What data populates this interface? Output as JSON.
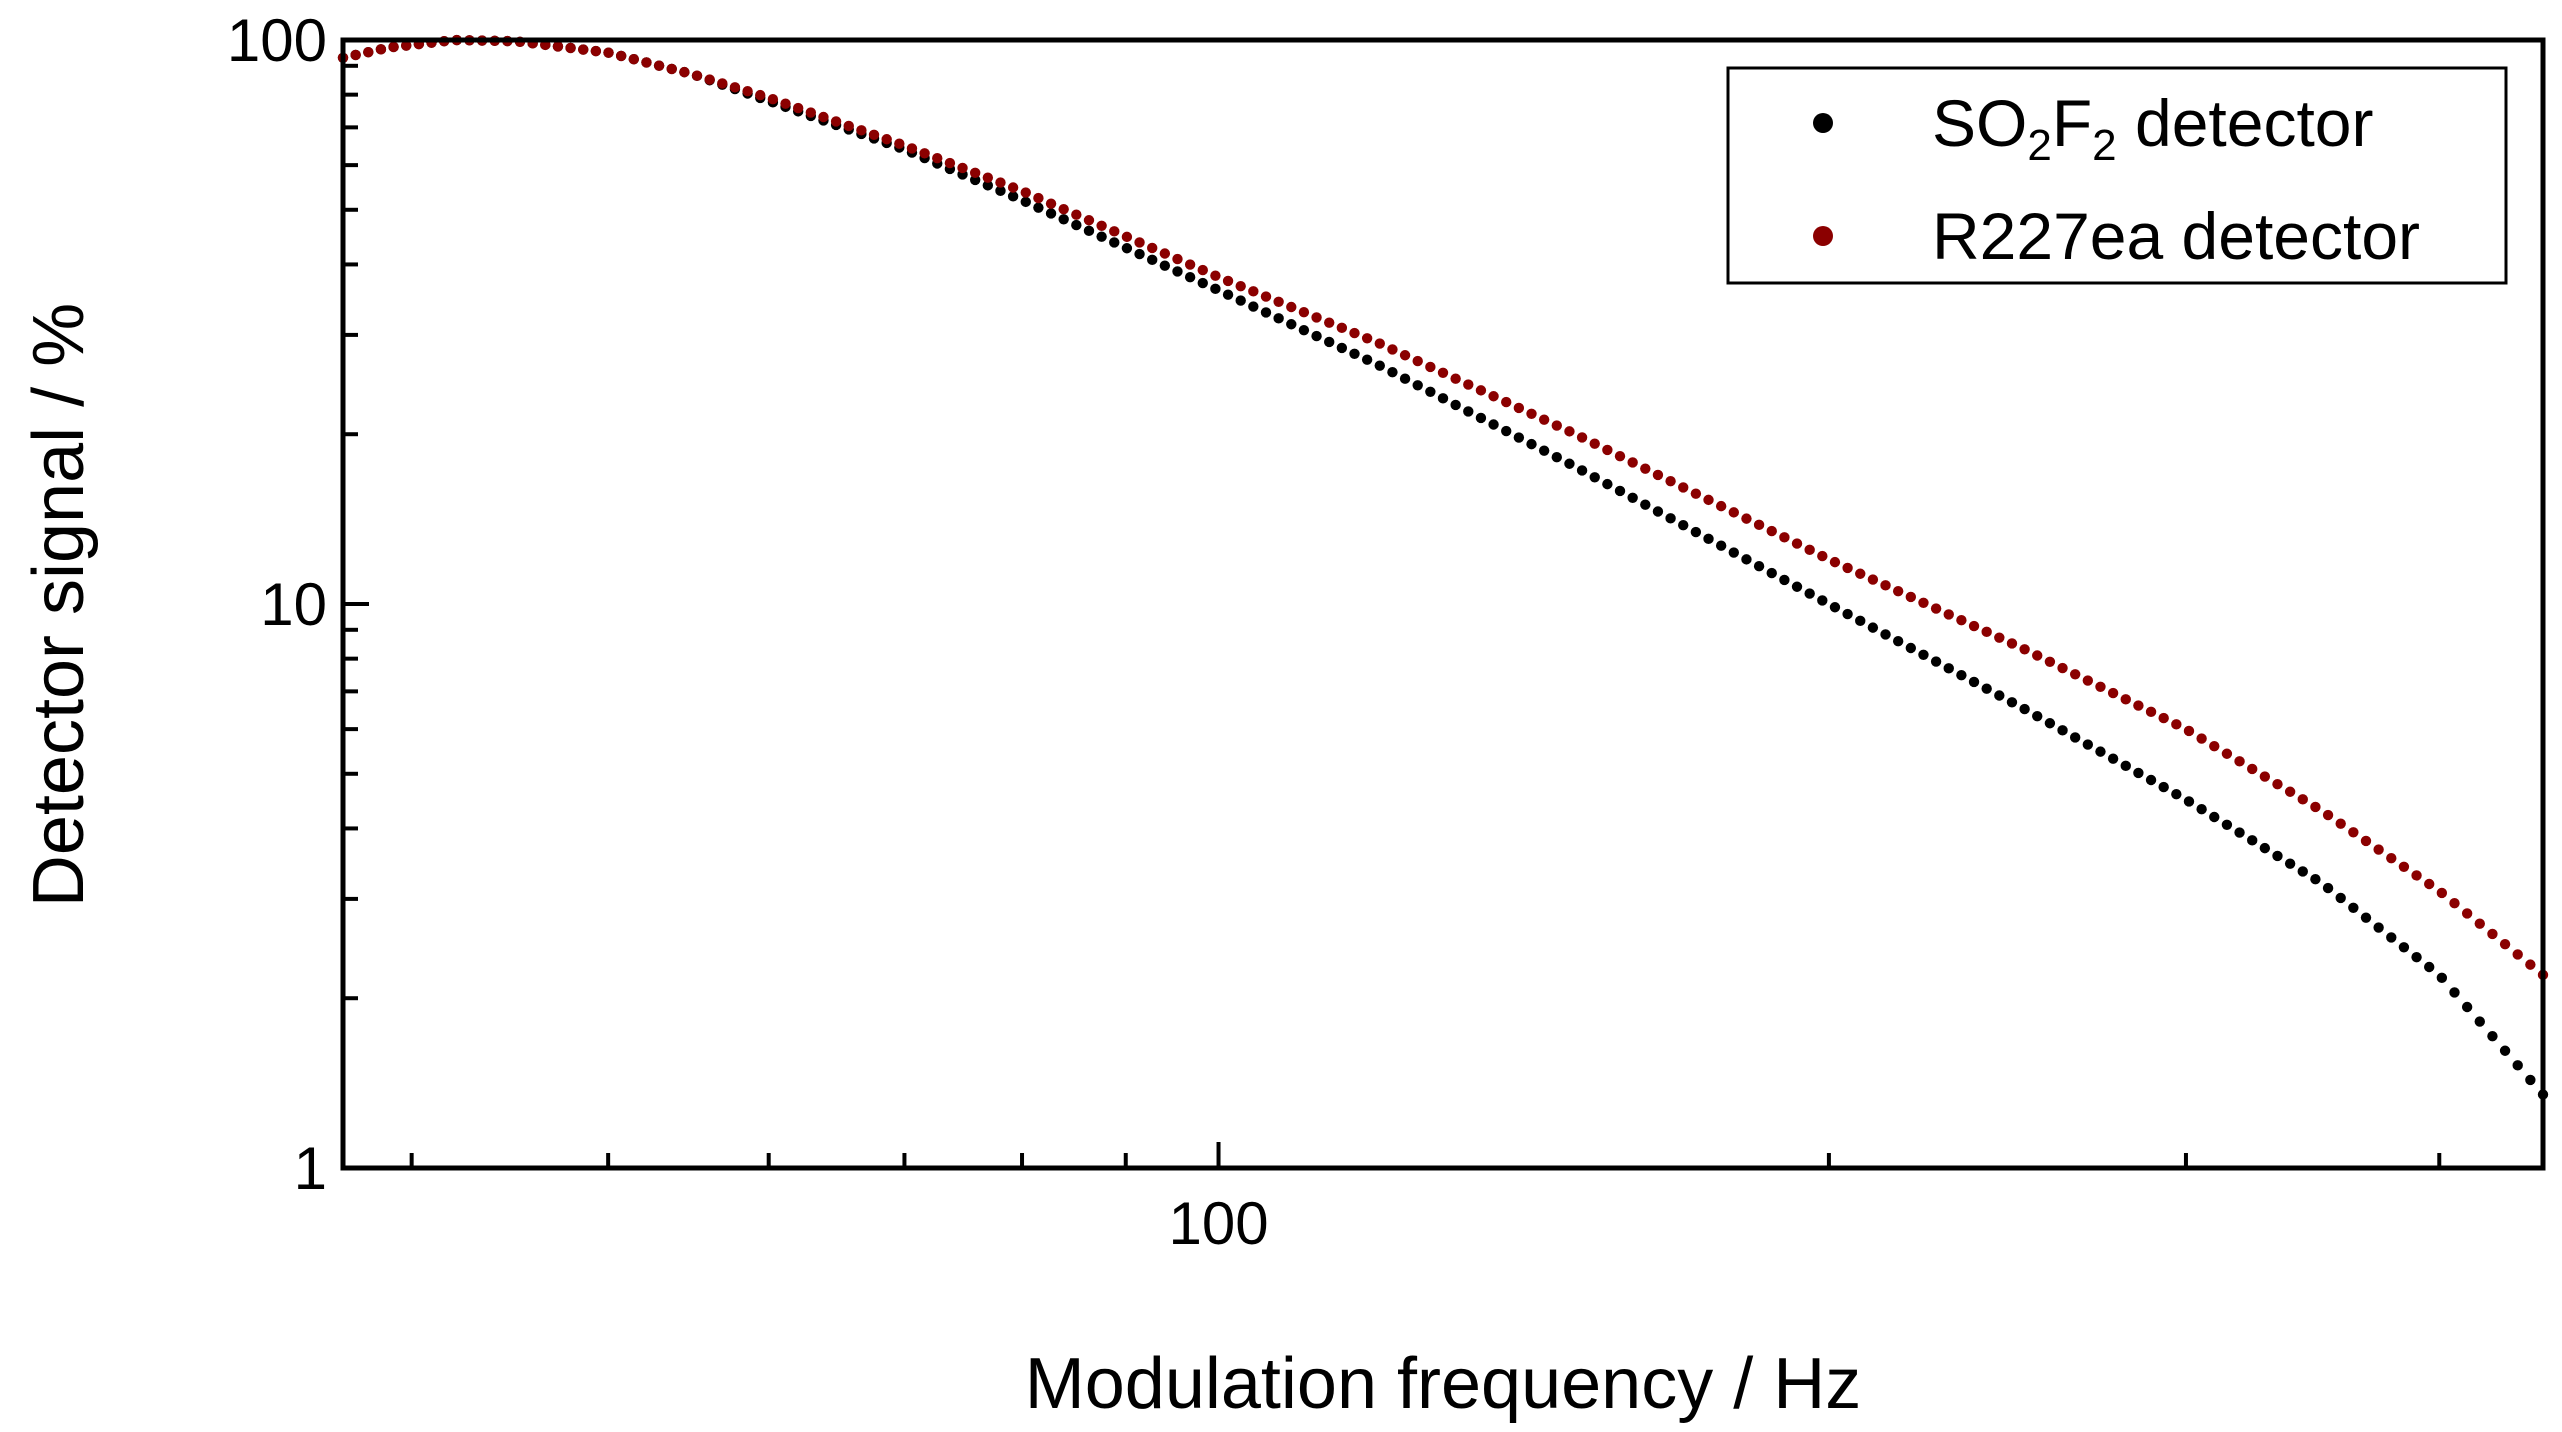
{
  "chart_data": {
    "type": "scatter",
    "xscale": "log",
    "yscale": "log",
    "xlim": [
      37,
      450
    ],
    "ylim": [
      1,
      100
    ],
    "xlabel": "Modulation frequency / Hz",
    "ylabel": "Detector signal / %",
    "xticks": [
      {
        "value": 100,
        "label": "100"
      }
    ],
    "yticks": [
      {
        "value": 1,
        "label": "1"
      },
      {
        "value": 10,
        "label": "10"
      },
      {
        "value": 100,
        "label": "100"
      }
    ],
    "legend": {
      "position": "top-right",
      "entries": [
        {
          "label_main": "SO",
          "sub1": "2",
          "label_mid": "F",
          "sub2": "2",
          "label_tail": " detector"
        },
        {
          "label_full": "R227ea detector"
        }
      ]
    },
    "f_start": 37,
    "f_end": 450,
    "n_points": 175,
    "series": [
      {
        "name": "SO2F2 detector",
        "color": "#000000",
        "anchors": [
          [
            37,
            93
          ],
          [
            39,
            97
          ],
          [
            42,
            100
          ],
          [
            45,
            99.5
          ],
          [
            50,
            95
          ],
          [
            55,
            87
          ],
          [
            60,
            78
          ],
          [
            70,
            64
          ],
          [
            80,
            52
          ],
          [
            100,
            36
          ],
          [
            120,
            26.5
          ],
          [
            150,
            17.5
          ],
          [
            200,
            10
          ],
          [
            250,
            6.5
          ],
          [
            300,
            4.5
          ],
          [
            350,
            3.2
          ],
          [
            400,
            2.2
          ],
          [
            450,
            1.35
          ]
        ]
      },
      {
        "name": "R227ea detector",
        "color": "#8b0000",
        "anchors": [
          [
            37,
            93
          ],
          [
            39,
            97
          ],
          [
            42,
            100
          ],
          [
            45,
            99.5
          ],
          [
            50,
            95
          ],
          [
            55,
            87
          ],
          [
            60,
            79
          ],
          [
            70,
            65
          ],
          [
            80,
            54
          ],
          [
            100,
            38
          ],
          [
            120,
            29
          ],
          [
            150,
            20
          ],
          [
            200,
            12
          ],
          [
            250,
            8.3
          ],
          [
            300,
            6
          ],
          [
            350,
            4.3
          ],
          [
            400,
            3.1
          ],
          [
            450,
            2.2
          ]
        ]
      }
    ]
  }
}
